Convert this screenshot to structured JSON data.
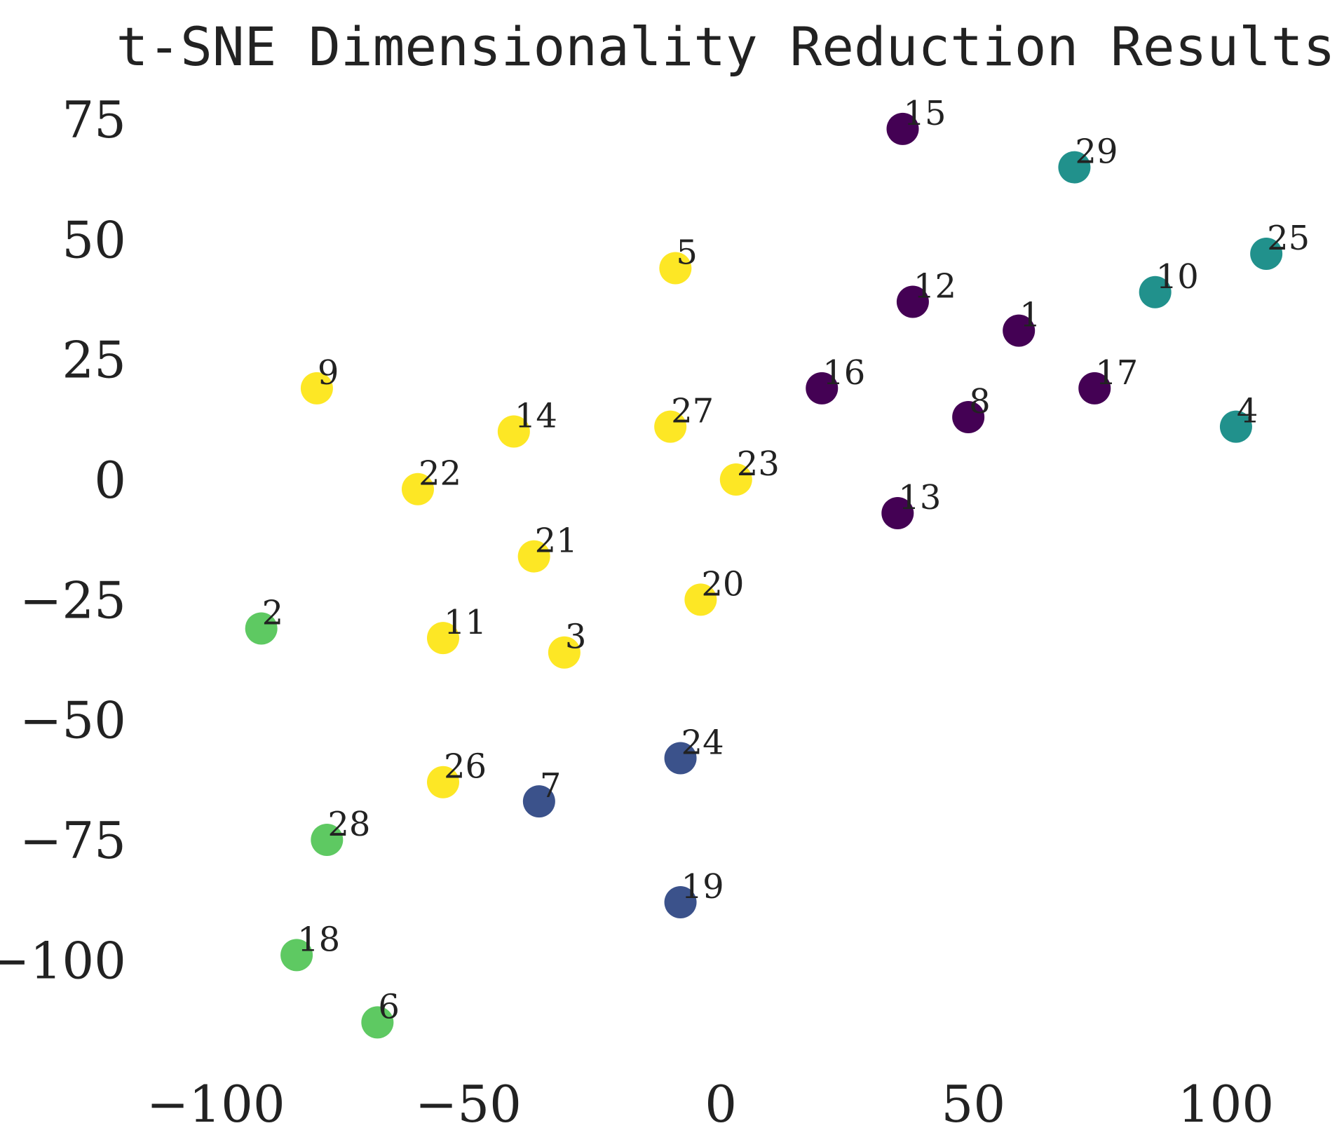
{
  "chart_data": {
    "type": "scatter",
    "title": "t-SNE Dimensionality Reduction Results",
    "xlabel": "",
    "ylabel": "",
    "xlim": [
      -114,
      122
    ],
    "ylim": [
      -122,
      81
    ],
    "x_ticks": [
      -100,
      -50,
      0,
      50,
      100
    ],
    "y_ticks": [
      -100,
      -75,
      -50,
      -25,
      0,
      25,
      50,
      75
    ],
    "x_tick_labels": [
      "−100",
      "−50",
      "0",
      "50",
      "100"
    ],
    "y_tick_labels": [
      "−100",
      "−75",
      "−50",
      "−25",
      "0",
      "25",
      "50",
      "75"
    ],
    "grid": false,
    "legend": "none",
    "colors": {
      "purple": "#440154",
      "blue": "#3b528b",
      "teal": "#21918c",
      "green": "#5ec962",
      "yellow": "#fde725",
      "text": "#222222"
    },
    "points": [
      {
        "label": "1",
        "x": 59,
        "y": 31,
        "color": "purple"
      },
      {
        "label": "2",
        "x": -91,
        "y": -31,
        "color": "green"
      },
      {
        "label": "3",
        "x": -31,
        "y": -36,
        "color": "yellow"
      },
      {
        "label": "4",
        "x": 102,
        "y": 11,
        "color": "teal"
      },
      {
        "label": "5",
        "x": -9,
        "y": 44,
        "color": "yellow"
      },
      {
        "label": "6",
        "x": -68,
        "y": -113,
        "color": "green"
      },
      {
        "label": "7",
        "x": -36,
        "y": -67,
        "color": "blue"
      },
      {
        "label": "8",
        "x": 49,
        "y": 13,
        "color": "purple"
      },
      {
        "label": "9",
        "x": -80,
        "y": 19,
        "color": "yellow"
      },
      {
        "label": "10",
        "x": 86,
        "y": 39,
        "color": "teal"
      },
      {
        "label": "11",
        "x": -55,
        "y": -33,
        "color": "yellow"
      },
      {
        "label": "12",
        "x": 38,
        "y": 37,
        "color": "purple"
      },
      {
        "label": "13",
        "x": 35,
        "y": -7,
        "color": "purple"
      },
      {
        "label": "14",
        "x": -41,
        "y": 10,
        "color": "yellow"
      },
      {
        "label": "15",
        "x": 36,
        "y": 73,
        "color": "purple"
      },
      {
        "label": "16",
        "x": 20,
        "y": 19,
        "color": "purple"
      },
      {
        "label": "17",
        "x": 74,
        "y": 19,
        "color": "purple"
      },
      {
        "label": "18",
        "x": -84,
        "y": -99,
        "color": "green"
      },
      {
        "label": "19",
        "x": -8,
        "y": -88,
        "color": "blue"
      },
      {
        "label": "20",
        "x": -4,
        "y": -25,
        "color": "yellow"
      },
      {
        "label": "21",
        "x": -37,
        "y": -16,
        "color": "yellow"
      },
      {
        "label": "22",
        "x": -60,
        "y": -2,
        "color": "yellow"
      },
      {
        "label": "23",
        "x": 3,
        "y": 0,
        "color": "yellow"
      },
      {
        "label": "24",
        "x": -8,
        "y": -58,
        "color": "blue"
      },
      {
        "label": "25",
        "x": 108,
        "y": 47,
        "color": "teal"
      },
      {
        "label": "26",
        "x": -55,
        "y": -63,
        "color": "yellow"
      },
      {
        "label": "27",
        "x": -10,
        "y": 11,
        "color": "yellow"
      },
      {
        "label": "28",
        "x": -78,
        "y": -75,
        "color": "green"
      },
      {
        "label": "29",
        "x": 70,
        "y": 65,
        "color": "teal"
      }
    ]
  }
}
